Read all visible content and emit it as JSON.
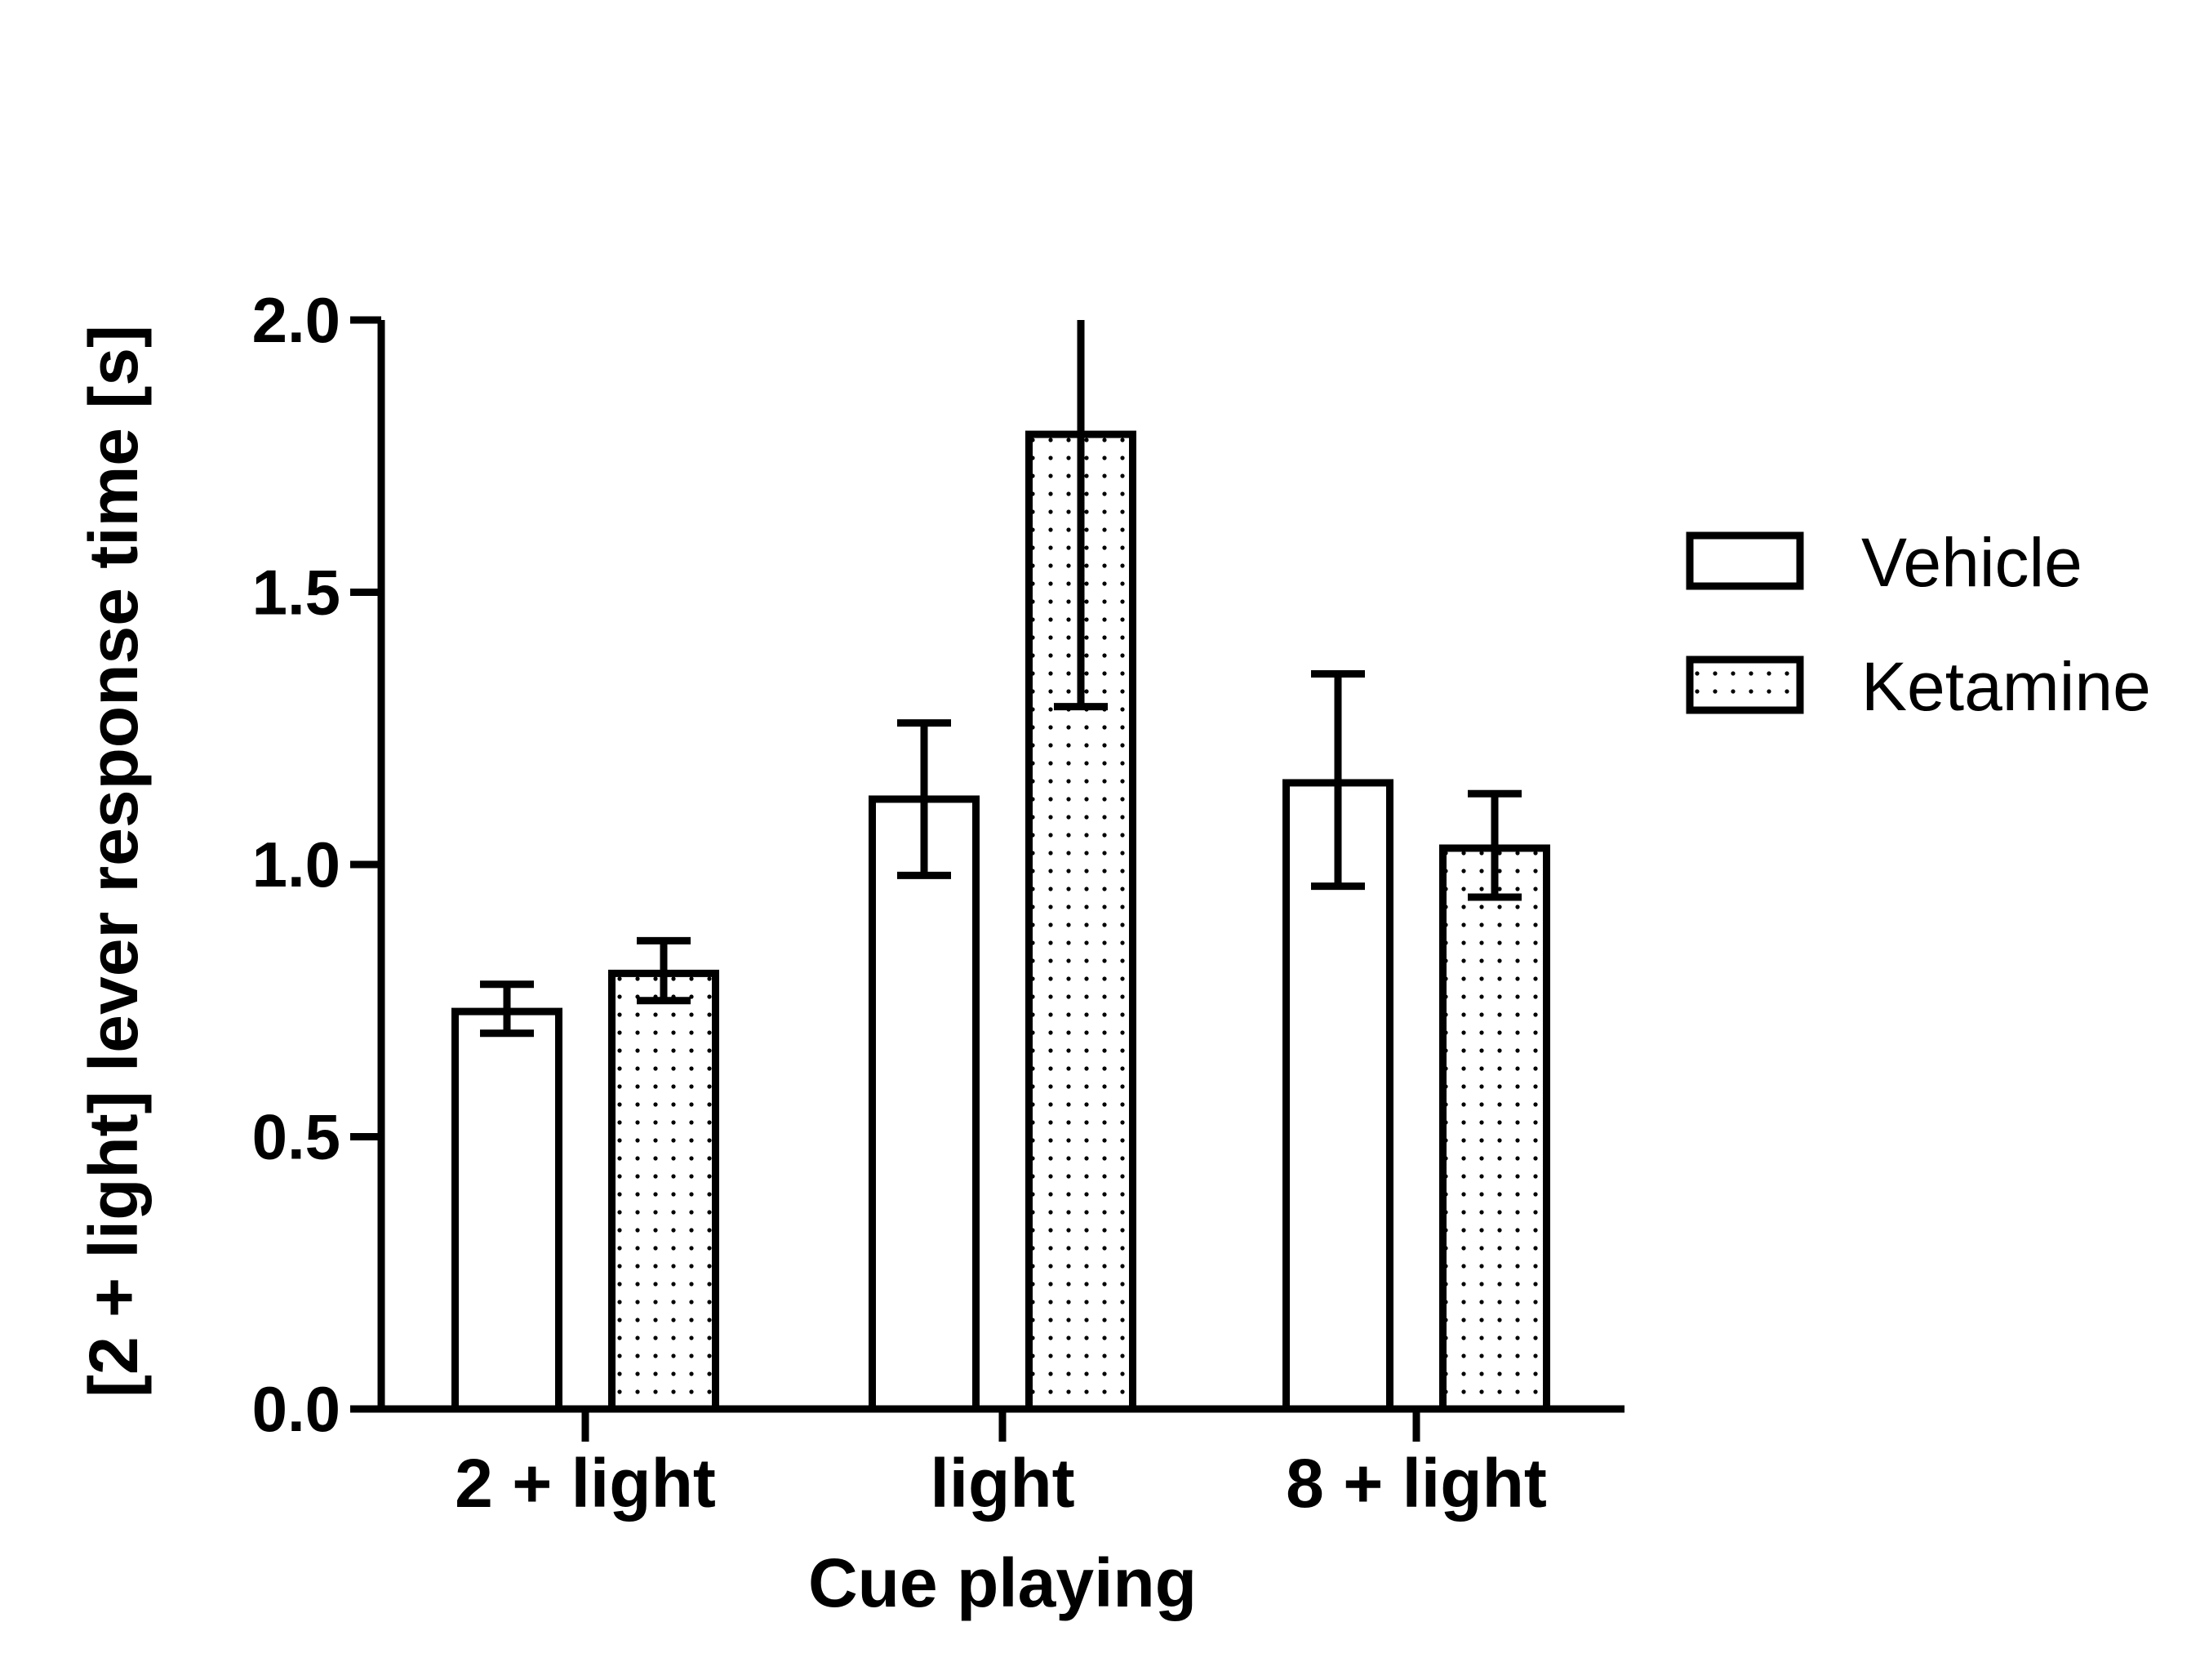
{
  "chart_data": {
    "type": "bar",
    "title": "",
    "xlabel": "Cue playing",
    "ylabel": "[2 + light] lever response time [s]",
    "categories": [
      "2 + light",
      "light",
      "8 + light"
    ],
    "series": [
      {
        "name": "Vehicle",
        "pattern": "none",
        "values": [
          0.73,
          1.12,
          1.15
        ],
        "err_low": [
          0.69,
          0.98,
          0.96
        ],
        "err_high": [
          0.78,
          1.26,
          1.35
        ]
      },
      {
        "name": "Ketamine",
        "pattern": "dots",
        "values": [
          0.8,
          1.79,
          1.03
        ],
        "err_low": [
          0.75,
          1.29,
          0.94
        ],
        "err_high": [
          0.86,
          2.0,
          1.13
        ]
      }
    ],
    "ylim": [
      0,
      2.0
    ],
    "yticks": [
      "0.0",
      "0.5",
      "1.0",
      "1.5",
      "2.0"
    ],
    "grid": false,
    "legend_position": "right",
    "colors": {
      "stroke": "#000000",
      "fill": "#ffffff",
      "dots": "#000000"
    }
  }
}
